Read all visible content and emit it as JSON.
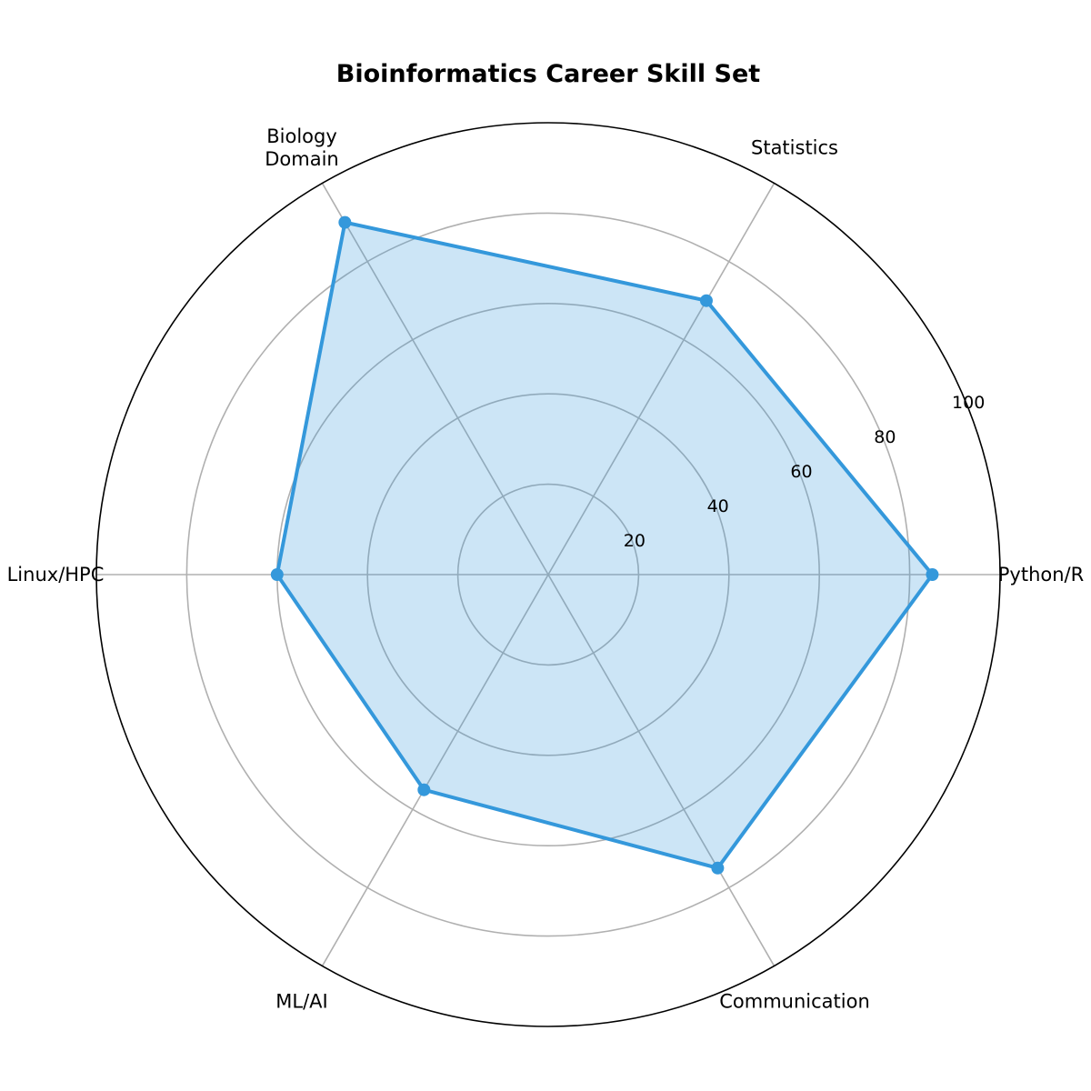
{
  "chart_data": {
    "type": "radar",
    "title": "Bioinformatics Career Skill Set",
    "categories": [
      "Python/R",
      "Statistics",
      "Biology\nDomain",
      "Linux/HPC",
      "ML/AI",
      "Communication"
    ],
    "series": [
      {
        "values": [
          85,
          70,
          90,
          60,
          55,
          75
        ]
      }
    ],
    "rlim": [
      0,
      100
    ],
    "r_ticks": [
      20,
      40,
      60,
      80,
      100
    ],
    "grid": true,
    "colors": {
      "line": "#3498db",
      "fill": "#3498db",
      "grid": "#b0b0b0",
      "outline": "#000000"
    }
  }
}
